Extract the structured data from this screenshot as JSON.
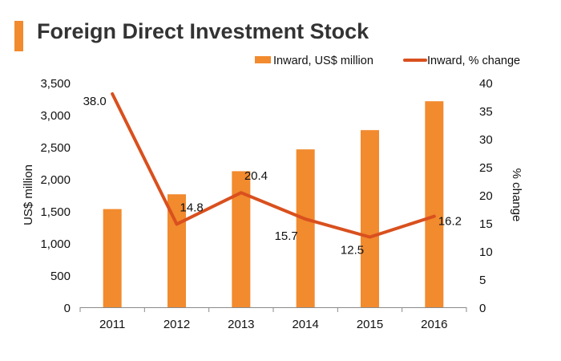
{
  "chart_data": {
    "type": "bar",
    "title": "Foreign Direct Investment Stock",
    "categories": [
      "2011",
      "2012",
      "2013",
      "2014",
      "2015",
      "2016"
    ],
    "series": [
      {
        "name": "Inward, US$ million",
        "type": "bar",
        "axis": "left",
        "color": "#f28a2e",
        "values": [
          1530,
          1760,
          2120,
          2460,
          2760,
          3210
        ]
      },
      {
        "name": "Inward, % change",
        "type": "line",
        "axis": "right",
        "color": "#d9501e",
        "values": [
          38.0,
          14.8,
          20.4,
          15.7,
          12.5,
          16.2
        ],
        "labels": [
          "38.0",
          "14.8",
          "20.4",
          "15.7",
          "12.5",
          "16.2"
        ]
      }
    ],
    "ylabel": "US$ million",
    "ylim": [
      0,
      3500
    ],
    "yticks": [
      "0",
      "500",
      "1,000",
      "1,500",
      "2,000",
      "2,500",
      "3,000",
      "3,500"
    ],
    "ylabel_right": "% change",
    "ylim_right": [
      0,
      40
    ],
    "yticks_right": [
      "0",
      "5",
      "10",
      "15",
      "20",
      "25",
      "30",
      "35",
      "40"
    ],
    "legend_position": "top-right",
    "grid": false
  }
}
